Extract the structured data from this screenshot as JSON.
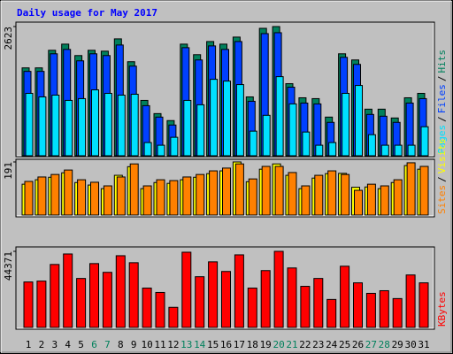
{
  "chart_data": [
    {
      "type": "bar",
      "title": "Daily usage for May 2017",
      "legend_separator": "/",
      "ylim": [
        0,
        2623
      ],
      "yticks": [
        2623
      ],
      "series": [
        {
          "name": "Pages",
          "color": "#00e0ff",
          "values": [
            1267,
            1195,
            1231,
            1124,
            1160,
            1338,
            1267,
            1231,
            1249,
            268,
            214,
            375,
            1124,
            1035,
            1552,
            1516,
            1445,
            500,
            821,
            1606,
            1053,
            482,
            214,
            268,
            1267,
            1427,
            428,
            214,
            214,
            214,
            589
          ]
        },
        {
          "name": "Files",
          "color": "#0040ff",
          "values": [
            1713,
            1713,
            2070,
            2159,
            1927,
            2070,
            2034,
            2248,
            1820,
            1017,
            785,
            624,
            2194,
            1945,
            2230,
            2159,
            2319,
            1106,
            2480,
            2498,
            1392,
            1070,
            1053,
            678,
            1998,
            1855,
            839,
            803,
            678,
            1070,
            1160
          ]
        },
        {
          "name": "Hits",
          "color": "#00805c",
          "values": [
            1784,
            1784,
            2141,
            2266,
            2034,
            2141,
            2123,
            2373,
            1909,
            1124,
            856,
            714,
            2266,
            2052,
            2319,
            2266,
            2409,
            1195,
            2587,
            2623,
            1463,
            1177,
            1160,
            785,
            2070,
            1945,
            946,
            946,
            767,
            1177,
            1267
          ]
        }
      ]
    },
    {
      "type": "bar",
      "legend_separator": "/",
      "ylim": [
        0,
        191
      ],
      "yticks": [
        191
      ],
      "series": [
        {
          "name": "Sites",
          "color": "#ff8000",
          "values": [
            121,
            137,
            146,
            162,
            127,
            118,
            105,
            137,
            184,
            105,
            127,
            124,
            137,
            146,
            159,
            169,
            184,
            130,
            175,
            175,
            153,
            105,
            143,
            159,
            146,
            89,
            111,
            105,
            127,
            188,
            175
          ]
        },
        {
          "name": "Visits",
          "color": "#ffff00",
          "values": [
            111,
            127,
            136,
            152,
            117,
            108,
            95,
            143,
            174,
            95,
            117,
            114,
            127,
            136,
            149,
            159,
            191,
            120,
            165,
            184,
            143,
            95,
            133,
            149,
            150,
            100,
            101,
            95,
            117,
            178,
            165
          ]
        }
      ]
    },
    {
      "type": "bar",
      "ylim": [
        0,
        44371
      ],
      "yticks": [
        44371
      ],
      "categories": [
        "1",
        "2",
        "3",
        "4",
        "5",
        "6",
        "7",
        "8",
        "9",
        "10",
        "11",
        "12",
        "13",
        "14",
        "15",
        "16",
        "17",
        "18",
        "19",
        "20",
        "21",
        "22",
        "23",
        "24",
        "25",
        "26",
        "27",
        "28",
        "29",
        "30",
        "31"
      ],
      "highlight_categories": [
        "6",
        "7",
        "13",
        "14",
        "20",
        "21",
        "27",
        "28"
      ],
      "highlight_color": "#00805c",
      "category_color": "#000000",
      "series": [
        {
          "name": "KBytes",
          "color": "#ff0000",
          "values": [
            26520,
            27030,
            36720,
            42840,
            28560,
            37230,
            32130,
            41820,
            37740,
            22950,
            20400,
            11730,
            43860,
            29580,
            38250,
            32640,
            42330,
            22950,
            33150,
            44371,
            34680,
            23970,
            28560,
            16320,
            35700,
            26010,
            19890,
            21420,
            16830,
            30600,
            26010
          ]
        }
      ]
    }
  ]
}
